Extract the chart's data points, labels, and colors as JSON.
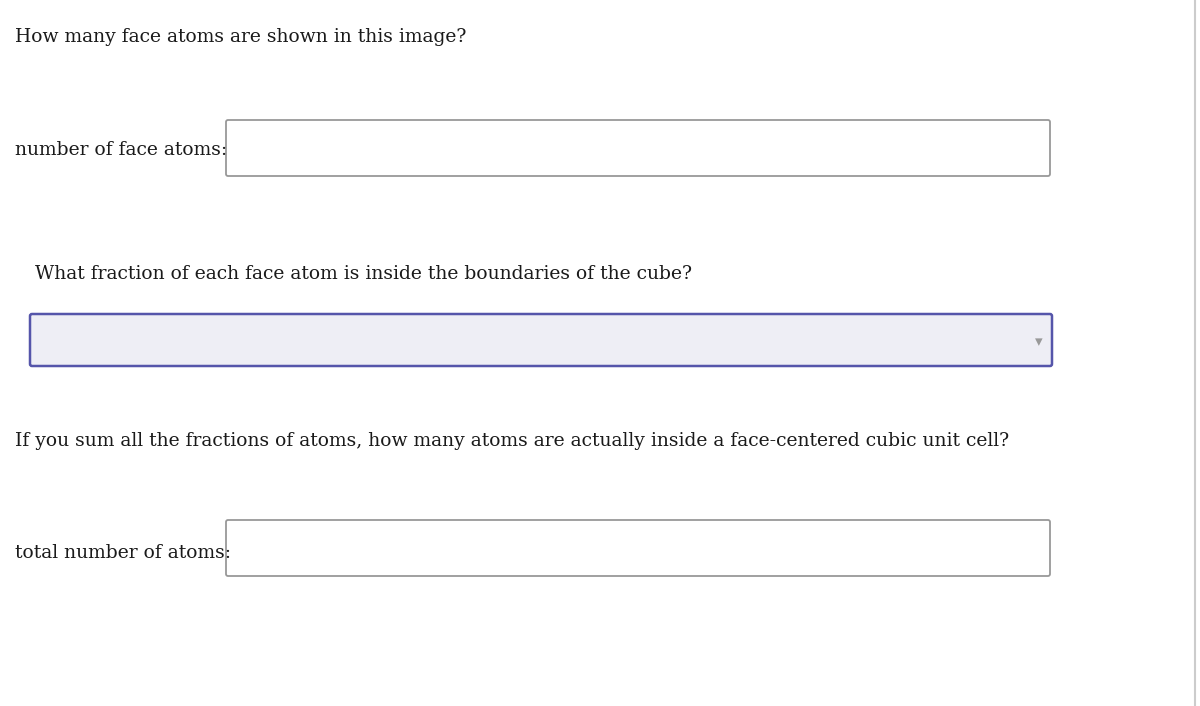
{
  "background_color": "#ffffff",
  "question1": "How many face atoms are shown in this image?",
  "label1": "number of face atoms:",
  "question2": "What fraction of each face atom is inside the boundaries of the cube?",
  "question3": "If you sum all the fractions of atoms, how many atoms are actually inside a face-centered cubic unit cell?",
  "label3": "total number of atoms:",
  "text_color": "#1a1a1a",
  "font_size": 13.5,
  "font_family": "serif",
  "box1_border_color": "#999999",
  "box1_fill_color": "#ffffff",
  "box2_border_color": "#5555aa",
  "box2_fill_color": "#eeeef5",
  "box3_border_color": "#999999",
  "box3_fill_color": "#ffffff",
  "right_line_color": "#cccccc"
}
